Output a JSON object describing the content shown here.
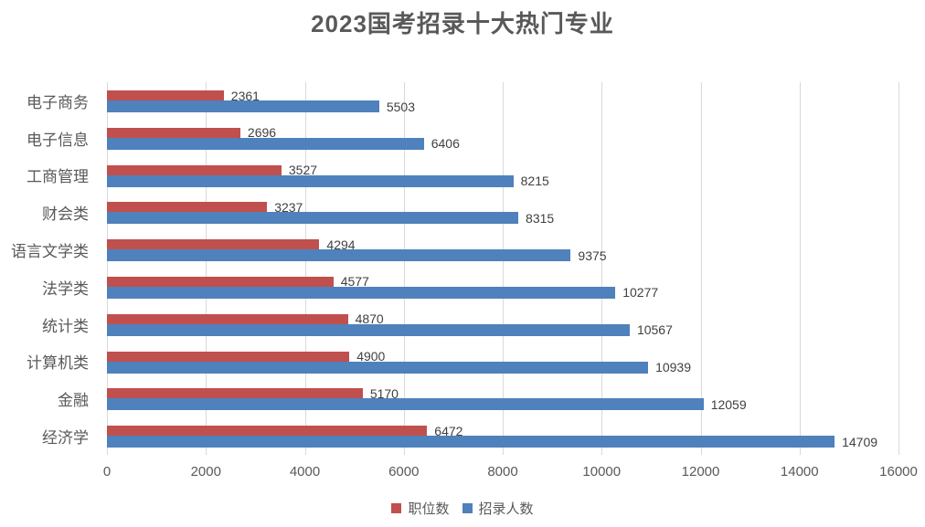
{
  "chart_data": {
    "type": "bar",
    "orientation": "horizontal",
    "title": "2023国考招录十大热门专业",
    "categories": [
      "电子商务",
      "电子信息",
      "工商管理",
      "财会类",
      "语言文学类",
      "法学类",
      "统计类",
      "计算机类",
      "金融",
      "经济学"
    ],
    "categories_order": "top-to-bottom",
    "series": [
      {
        "name": "职位数",
        "color": "#C0504D",
        "values": [
          2361,
          2696,
          3527,
          3237,
          4294,
          4577,
          4870,
          4900,
          5170,
          6472
        ]
      },
      {
        "name": "招录人数",
        "color": "#4F81BD",
        "values": [
          5503,
          6406,
          8215,
          8315,
          9375,
          10277,
          10567,
          10939,
          12059,
          14709
        ]
      }
    ],
    "xlim": [
      0,
      16000
    ],
    "x_ticks": [
      0,
      2000,
      4000,
      6000,
      8000,
      10000,
      12000,
      14000,
      16000
    ],
    "value_labels": true,
    "grid": "vertical",
    "legend_position": "bottom"
  },
  "colors": {
    "series_positions": "#C0504D",
    "series_recruits": "#4F81BD",
    "gridline": "#D9D9D9",
    "title_text": "#595959",
    "axis_text": "#595959",
    "value_label_text": "#404040",
    "background": "#FFFFFF"
  }
}
